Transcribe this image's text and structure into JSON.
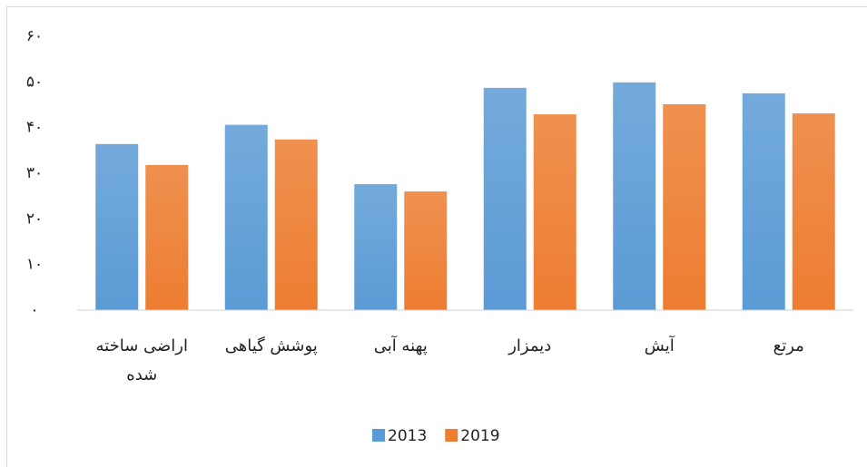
{
  "chart_data": {
    "type": "bar",
    "categories": [
      "اراضی ساخته شده",
      "پوشش گیاهی",
      "پهنه آبی",
      "دیمزار",
      "آیش",
      "مرتع"
    ],
    "series": [
      {
        "name": "2013",
        "color": "#5b9bd5",
        "values": [
          36.4,
          40.6,
          27.6,
          48.7,
          49.9,
          47.5
        ]
      },
      {
        "name": "2019",
        "color": "#ed7d31",
        "values": [
          31.8,
          37.4,
          26.0,
          42.9,
          45.1,
          43.1
        ]
      }
    ],
    "ylim": [
      0,
      60
    ],
    "yticks": [
      {
        "value": 0,
        "label": "۰"
      },
      {
        "value": 10,
        "label": "۱۰"
      },
      {
        "value": 20,
        "label": "۲۰"
      },
      {
        "value": 30,
        "label": "۳۰"
      },
      {
        "value": 40,
        "label": "۴۰"
      },
      {
        "value": 50,
        "label": "۵۰"
      },
      {
        "value": 60,
        "label": "۶۰"
      }
    ],
    "grid": false,
    "legend": "bottom"
  }
}
